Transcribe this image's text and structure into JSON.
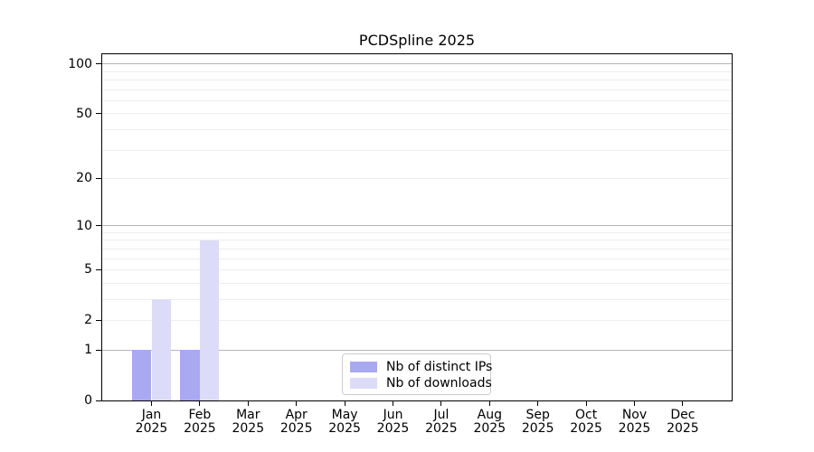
{
  "title": "PCDSpline 2025",
  "chart_data": {
    "type": "bar",
    "title": "PCDSpline 2025",
    "xlabel": "",
    "ylabel": "",
    "categories": [
      "Jan 2025",
      "Feb 2025",
      "Mar 2025",
      "Apr 2025",
      "May 2025",
      "Jun 2025",
      "Jul 2025",
      "Aug 2025",
      "Sep 2025",
      "Oct 2025",
      "Nov 2025",
      "Dec 2025"
    ],
    "series": [
      {
        "name": "Nb of distinct IPs",
        "color": "#a9a9f2",
        "values": [
          1,
          1,
          0,
          0,
          0,
          0,
          0,
          0,
          0,
          0,
          0,
          0
        ]
      },
      {
        "name": "Nb of downloads",
        "color": "#dcdcf8",
        "values": [
          3,
          8,
          0,
          0,
          0,
          0,
          0,
          0,
          0,
          0,
          0,
          0
        ]
      }
    ],
    "yscale": "log10(1+value)",
    "ylim": [
      0,
      110
    ],
    "yticks": [
      0,
      1,
      2,
      5,
      10,
      20,
      50,
      100
    ],
    "gridlines": {
      "major": [
        1,
        10,
        100
      ],
      "minor": [
        2,
        3,
        4,
        5,
        6,
        7,
        8,
        9,
        20,
        30,
        40,
        50,
        60,
        70,
        80,
        90
      ]
    },
    "grid": true,
    "legend_position": "bottom-center-inside"
  },
  "colors": {
    "background": "#ffffff",
    "axis": "#000000",
    "major_grid": "#b5b5b5",
    "minor_grid": "#ededed",
    "legend_border": "#cccccc",
    "bar_distinct_ips": "#a9a9f2",
    "bar_downloads": "#dcdcf8"
  }
}
